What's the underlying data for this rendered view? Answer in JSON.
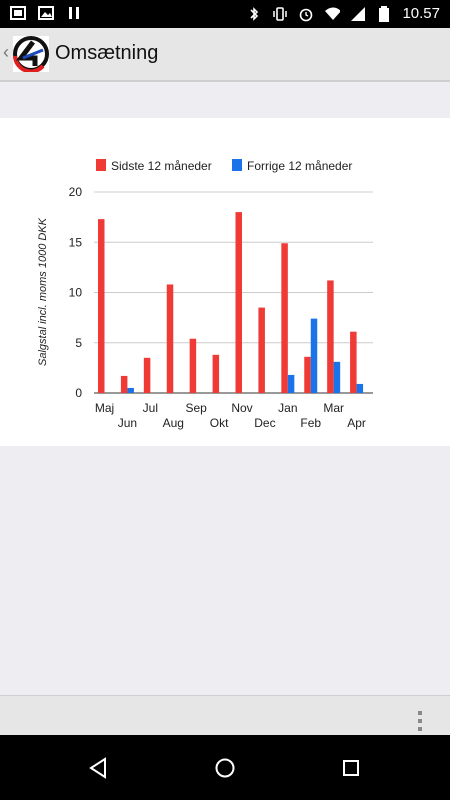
{
  "status_bar": {
    "time": "10.57",
    "icons": [
      "image-icon",
      "gallery-icon",
      "pause-icon",
      "bluetooth-icon",
      "vibrate-icon",
      "alarm-icon",
      "wifi-icon",
      "signal-icon",
      "battery-icon"
    ]
  },
  "action_bar": {
    "title": "Omsætning",
    "back_icon": "chevron-left-icon",
    "logo": "app-logo"
  },
  "chart_data": {
    "type": "bar",
    "categories": [
      "Maj",
      "Jun",
      "Jul",
      "Aug",
      "Sep",
      "Okt",
      "Nov",
      "Dec",
      "Jan",
      "Feb",
      "Mar",
      "Apr"
    ],
    "series": [
      {
        "name": "Sidste 12 måneder",
        "color": "#f03a36",
        "values": [
          17.3,
          1.7,
          3.5,
          10.8,
          5.4,
          3.8,
          18.0,
          8.5,
          14.9,
          3.6,
          11.2,
          6.1
        ]
      },
      {
        "name": "Forrige 12 måneder",
        "color": "#1a73e8",
        "values": [
          0,
          0.5,
          0,
          0,
          0,
          0,
          0,
          0,
          1.8,
          7.4,
          3.1,
          0.9
        ]
      }
    ],
    "ylabel": "Salgstal incl. moms 1000 DKK",
    "ylim": [
      0,
      20
    ],
    "yticks": [
      0,
      5,
      10,
      15,
      20
    ],
    "grid": true,
    "legend": "top"
  },
  "bottom_bar": {
    "overflow_icon": "overflow-menu-icon"
  },
  "nav_bar": {
    "buttons": [
      "back-icon",
      "home-icon",
      "recents-icon"
    ]
  }
}
